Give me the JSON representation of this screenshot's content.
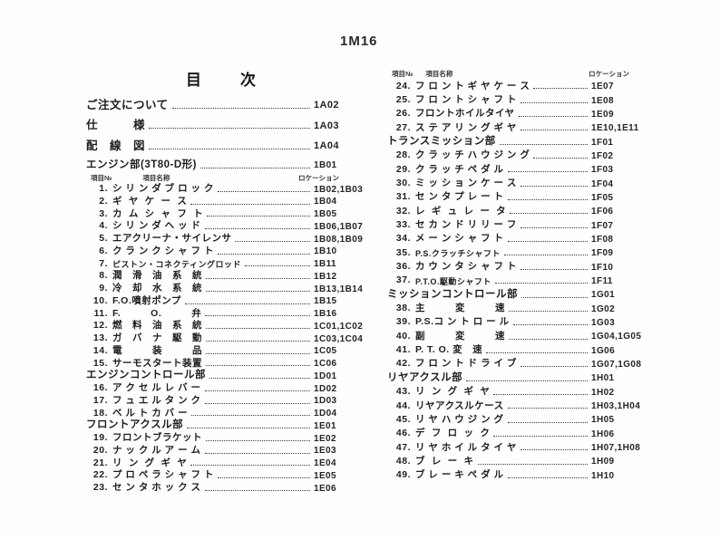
{
  "page": {
    "code": "1M16",
    "title": "目　　次"
  },
  "columns": {
    "left": {
      "rows": [
        {
          "kind": "intro",
          "label": "ご注文について",
          "code": "1A02"
        },
        {
          "kind": "intro",
          "label": "仕　　　様",
          "code": "1A03"
        },
        {
          "kind": "intro",
          "label": "配　線　図",
          "code": "1A04"
        },
        {
          "kind": "section gap",
          "label": "エンジン部(3T80-D形)",
          "code": "1B01"
        },
        {
          "kind": "colhead",
          "no": "項目№",
          "name": "項目名称",
          "loc": "ロケーション"
        },
        {
          "kind": "item",
          "no": "1.",
          "label": "シ リ ン ダ ブ ロ ッ ク",
          "code": "1B02,1B03"
        },
        {
          "kind": "item",
          "no": "2.",
          "label": "ギ  ヤ  ケ  ー  ス",
          "code": "1B04"
        },
        {
          "kind": "item",
          "no": "3.",
          "label": "カ  ム  シ  ャ  フ  ト",
          "code": "1B05"
        },
        {
          "kind": "item",
          "no": "4.",
          "label": "シ リ ン ダ ヘ ッ ド",
          "code": "1B06,1B07"
        },
        {
          "kind": "item",
          "no": "5.",
          "label": "エアクリーナ・サイレンサ",
          "code": "1B08,1B09"
        },
        {
          "kind": "item",
          "no": "6.",
          "label": "ク ラ ン ク シ ャ フ ト",
          "code": "1B10"
        },
        {
          "kind": "item small",
          "no": "7.",
          "label": "ピストン・コネクティングロッド",
          "code": "1B11"
        },
        {
          "kind": "item",
          "no": "8.",
          "label": "潤　滑　油　系　統",
          "code": "1B12"
        },
        {
          "kind": "item",
          "no": "9.",
          "label": "冷　却　水　系　統",
          "code": "1B13,1B14"
        },
        {
          "kind": "item",
          "no": "10.",
          "label": "F.O.噴射ポンプ",
          "code": "1B15"
        },
        {
          "kind": "item",
          "no": "11.",
          "label": "F.　　　O.　　　弁",
          "code": "1B16"
        },
        {
          "kind": "item",
          "no": "12.",
          "label": "燃　料　油　系　統",
          "code": "1C01,1C02"
        },
        {
          "kind": "item",
          "no": "13.",
          "label": "ガ　バ　ナ　駆　動",
          "code": "1C03,1C04"
        },
        {
          "kind": "item",
          "no": "14.",
          "label": "電　　　装　　　品",
          "code": "1C05"
        },
        {
          "kind": "item",
          "no": "15.",
          "label": "サーモスタート装置",
          "code": "1C06"
        },
        {
          "kind": "section",
          "label": "エンジンコントロール部",
          "code": "1D01"
        },
        {
          "kind": "item",
          "no": "16.",
          "label": "ア ク セ ル レ バ ー",
          "code": "1D02"
        },
        {
          "kind": "item",
          "no": "17.",
          "label": "フ ュ エ ル タ ン ク",
          "code": "1D03"
        },
        {
          "kind": "item",
          "no": "18.",
          "label": "ベ ル ト カ バ ー",
          "code": "1D04"
        },
        {
          "kind": "section",
          "label": "フロントアクスル部",
          "code": "1E01"
        },
        {
          "kind": "item",
          "no": "19.",
          "label": "フロントブラケット",
          "code": "1E02"
        },
        {
          "kind": "item",
          "no": "20.",
          "label": "ナ ッ ク ル ア ー ム",
          "code": "1E03"
        },
        {
          "kind": "item",
          "no": "21.",
          "label": "リ  ン  グ  ギ  ヤ",
          "code": "1E04"
        },
        {
          "kind": "item",
          "no": "22.",
          "label": "プ ロ ペ ラ シ ャ フ ト",
          "code": "1E05"
        },
        {
          "kind": "item",
          "no": "23.",
          "label": "セ ン タ ホ ッ ク ス",
          "code": "1E06"
        }
      ]
    },
    "right": {
      "rows": [
        {
          "kind": "colhead",
          "no": "項目№",
          "name": "項目名称",
          "loc": "ロケーション"
        },
        {
          "kind": "item",
          "no": "24.",
          "label": "フ ロ ン ト ギ ヤ ケ ー ス",
          "code": "1E07"
        },
        {
          "kind": "item",
          "no": "25.",
          "label": "フ ロ ン ト シ ャ フ ト",
          "code": "1E08"
        },
        {
          "kind": "item",
          "no": "26.",
          "label": "フロントホイルタイヤ",
          "code": "1E09"
        },
        {
          "kind": "item",
          "no": "27.",
          "label": "ス テ ア リ ン グ ギ ヤ",
          "code": "1E10,1E11"
        },
        {
          "kind": "section",
          "label": "トランスミッション部",
          "code": "1F01"
        },
        {
          "kind": "item",
          "no": "28.",
          "label": "ク ラ ッ チ ハ ウ ジ ン グ",
          "code": "1F02"
        },
        {
          "kind": "item",
          "no": "29.",
          "label": "ク ラ ッ チ ペ ダ ル",
          "code": "1F03"
        },
        {
          "kind": "item",
          "no": "30.",
          "label": "ミ ッ シ ョ ン ケ ー ス",
          "code": "1F04"
        },
        {
          "kind": "item",
          "no": "31.",
          "label": "セ ン タ プ レ ー ト",
          "code": "1F05"
        },
        {
          "kind": "item",
          "no": "32.",
          "label": "レ  ギ  ュ  レ  ー  タ",
          "code": "1F06"
        },
        {
          "kind": "item",
          "no": "33.",
          "label": "セ カ ン ド リ リ ー フ",
          "code": "1F07"
        },
        {
          "kind": "item",
          "no": "34.",
          "label": "メ ー ン シ ャ フ ト",
          "code": "1F08"
        },
        {
          "kind": "item small",
          "no": "35.",
          "label": "P.S.クラッチシャフト",
          "code": "1F09"
        },
        {
          "kind": "item",
          "no": "36.",
          "label": "カ ウ ン タ シ ャ フ ト",
          "code": "1F10"
        },
        {
          "kind": "item small",
          "no": "37.",
          "label": "P.T.O.駆動シャフト",
          "code": "1F11"
        },
        {
          "kind": "section",
          "label": "ミッションコントロール部",
          "code": "1G01"
        },
        {
          "kind": "item",
          "no": "38.",
          "label": "主　　　変　　　速",
          "code": "1G02"
        },
        {
          "kind": "item",
          "no": "39.",
          "label": "P.S.コ ン ト ロ ー ル",
          "code": "1G03"
        },
        {
          "kind": "item",
          "no": "40.",
          "label": "副　　　変　　　速",
          "code": "1G04,1G05"
        },
        {
          "kind": "item",
          "no": "41.",
          "label": "P. T. O. 変　速",
          "code": "1G06"
        },
        {
          "kind": "item",
          "no": "42.",
          "label": "フ ロ ン ト ド ラ イ ブ",
          "code": "1G07,1G08"
        },
        {
          "kind": "section",
          "label": "リヤアクスル部",
          "code": "1H01"
        },
        {
          "kind": "item",
          "no": "43.",
          "label": "リ  ン  グ  ギ  ヤ",
          "code": "1H02"
        },
        {
          "kind": "item",
          "no": "44.",
          "label": "リヤアクスルケース",
          "code": "1H03,1H04"
        },
        {
          "kind": "item",
          "no": "45.",
          "label": "リ ヤ ハ ウ ジ ン グ",
          "code": "1H05"
        },
        {
          "kind": "item",
          "no": "46.",
          "label": "デ  フ  ロ  ッ  ク",
          "code": "1H06"
        },
        {
          "kind": "item",
          "no": "47.",
          "label": "リ ヤ ホ イ ル タ イ ヤ",
          "code": "1H07,1H08"
        },
        {
          "kind": "item",
          "no": "48.",
          "label": "ブ  レ  ー  キ",
          "code": "1H09"
        },
        {
          "kind": "item",
          "no": "49.",
          "label": "ブ レ ー キ ペ ダ ル",
          "code": "1H10"
        }
      ]
    }
  }
}
